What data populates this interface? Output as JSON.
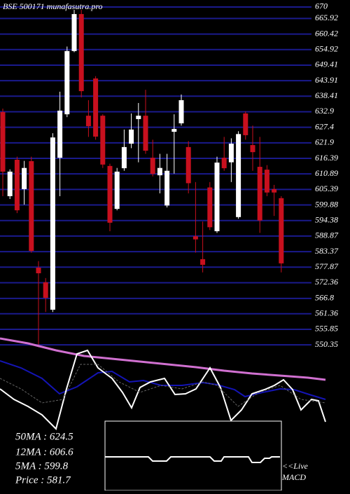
{
  "chart_data": {
    "type": "candlestick",
    "title": "BSE 500171 munafasutra.pro",
    "ylim": [
      548.4,
      672.48
    ],
    "yticks": [
      670,
      665.92,
      660.42,
      654.92,
      649.41,
      643.91,
      638.41,
      632.9,
      627.4,
      621.9,
      616.39,
      610.89,
      605.39,
      599.88,
      594.38,
      588.87,
      583.37,
      577.87,
      572.36,
      566.8,
      561.36,
      555.85,
      550.35
    ],
    "grid": true,
    "grid_color": "#1a1a8c",
    "up_color": "#ffffff",
    "down_color": "#c8101e",
    "open": [
      632.8,
      603,
      615.9,
      605.5,
      615.4,
      577.7,
      572.5,
      562.8,
      616.6,
      632,
      654.4,
      667.5,
      631.5,
      644.7,
      631.5,
      613.7,
      598.5,
      612.9,
      621.6,
      630.3,
      631.5,
      616.6,
      610.4,
      599.7,
      625.8,
      628.8,
      620.4,
      588.8,
      580.7,
      606.1,
      590.6,
      616.6,
      615,
      595.6,
      632.3,
      621.1,
      613.4,
      612.4,
      605.5,
      602.3
    ],
    "close": [
      611.7,
      611.7,
      598,
      613,
      583.6,
      575.7,
      567,
      623.8,
      633.3,
      654.4,
      667.5,
      640.2,
      627.8,
      624.1,
      614.2,
      593.6,
      611.7,
      620.4,
      626.6,
      631.5,
      619.1,
      610.9,
      613,
      612,
      626.8,
      637,
      607.6,
      587.7,
      578.7,
      592,
      614.9,
      612.9,
      621.6,
      625,
      624.6,
      618.6,
      594.4,
      604.3,
      604.3,
      579.2
    ],
    "high": [
      634,
      612.5,
      617,
      615.5,
      617,
      580,
      574,
      625.3,
      640,
      656,
      669,
      669,
      637,
      645.5,
      632,
      614.5,
      613,
      626.6,
      632.3,
      636,
      640.7,
      623,
      618,
      618,
      632,
      639,
      622.5,
      608,
      594,
      608,
      617,
      624,
      623.5,
      626,
      633,
      628,
      624,
      614,
      607,
      603
    ],
    "low": [
      603,
      602,
      597,
      600,
      583,
      549.5,
      562,
      562,
      603,
      631,
      654,
      638,
      624,
      623,
      613,
      590.6,
      598,
      612,
      620,
      615,
      618,
      610,
      604,
      599,
      611,
      628,
      604,
      583,
      576,
      591,
      590,
      612,
      608,
      595,
      623,
      612,
      590,
      603,
      596,
      576
    ],
    "info_labels": [
      "50MA : 624.5",
      "12MA : 606.6",
      "5MA : 599.8",
      "Price  : 581.7"
    ],
    "live_label": "<<Live",
    "macd_label": "MACD"
  }
}
